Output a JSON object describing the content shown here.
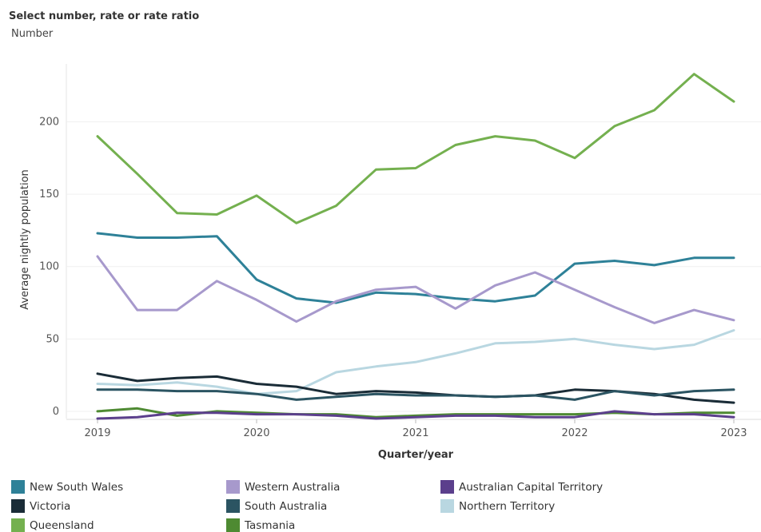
{
  "control": {
    "label": "Select number, rate or rate ratio",
    "value": "Number"
  },
  "chart_data": {
    "type": "line",
    "title": "",
    "xlabel": "Quarter/year",
    "ylabel": "Average nightly population",
    "ylim": [
      -5,
      240
    ],
    "yticks": [
      0,
      50,
      100,
      150,
      200
    ],
    "xlim": [
      2019,
      2023
    ],
    "xticks": [
      "2019",
      "2020",
      "2021",
      "2022",
      "2023"
    ],
    "grid": "horizontal",
    "legend_position": "bottom",
    "x": [
      2019.0,
      2019.25,
      2019.5,
      2019.75,
      2020.0,
      2020.25,
      2020.5,
      2020.75,
      2021.0,
      2021.25,
      2021.5,
      2021.75,
      2022.0,
      2022.25,
      2022.5,
      2022.75,
      2023.0
    ],
    "series": [
      {
        "name": "Queensland",
        "color": "#74b04f",
        "values": [
          190,
          164,
          137,
          136,
          149,
          130,
          142,
          167,
          168,
          184,
          190,
          187,
          175,
          197,
          208,
          233,
          214
        ]
      },
      {
        "name": "New South Wales",
        "color": "#2e8198",
        "values": [
          123,
          120,
          120,
          121,
          91,
          78,
          75,
          82,
          81,
          78,
          76,
          80,
          102,
          104,
          101,
          106,
          106
        ]
      },
      {
        "name": "Western Australia",
        "color": "#a799cc",
        "values": [
          107,
          70,
          70,
          90,
          77,
          62,
          76,
          84,
          86,
          71,
          87,
          96,
          84,
          72,
          61,
          70,
          63
        ]
      },
      {
        "name": "Northern Territory",
        "color": "#b9d7e1",
        "values": [
          19,
          18,
          20,
          17,
          12,
          14,
          27,
          31,
          34,
          40,
          47,
          48,
          50,
          46,
          43,
          46,
          56
        ]
      },
      {
        "name": "Victoria",
        "color": "#1a2c37",
        "values": [
          26,
          21,
          23,
          24,
          19,
          17,
          12,
          14,
          13,
          11,
          10,
          11,
          15,
          14,
          12,
          8,
          6
        ]
      },
      {
        "name": "South Australia",
        "color": "#2b5462",
        "values": [
          15,
          15,
          14,
          14,
          12,
          8,
          10,
          12,
          11,
          11,
          10,
          11,
          8,
          14,
          11,
          14,
          15
        ]
      },
      {
        "name": "Tasmania",
        "color": "#4e8a32",
        "values": [
          0,
          2,
          -3,
          0,
          -1,
          -2,
          -2,
          -4,
          -3,
          -2,
          -2,
          -2,
          -2,
          -1,
          -2,
          -1,
          -1
        ]
      },
      {
        "name": "Australian Capital Territory",
        "color": "#5b3f8c",
        "values": [
          -5,
          -4,
          -1,
          -1,
          -2,
          -2,
          -3,
          -5,
          -4,
          -3,
          -3,
          -4,
          -4,
          0,
          -2,
          -2,
          -4
        ]
      }
    ]
  },
  "legend": [
    {
      "name": "New South Wales",
      "color": "#2e8198"
    },
    {
      "name": "Western Australia",
      "color": "#a799cc"
    },
    {
      "name": "Australian Capital Territory",
      "color": "#5b3f8c"
    },
    {
      "name": "Victoria",
      "color": "#1a2c37"
    },
    {
      "name": "South Australia",
      "color": "#2b5462"
    },
    {
      "name": "Northern Territory",
      "color": "#b9d7e1"
    },
    {
      "name": "Queensland",
      "color": "#74b04f"
    },
    {
      "name": "Tasmania",
      "color": "#4e8a32"
    }
  ]
}
